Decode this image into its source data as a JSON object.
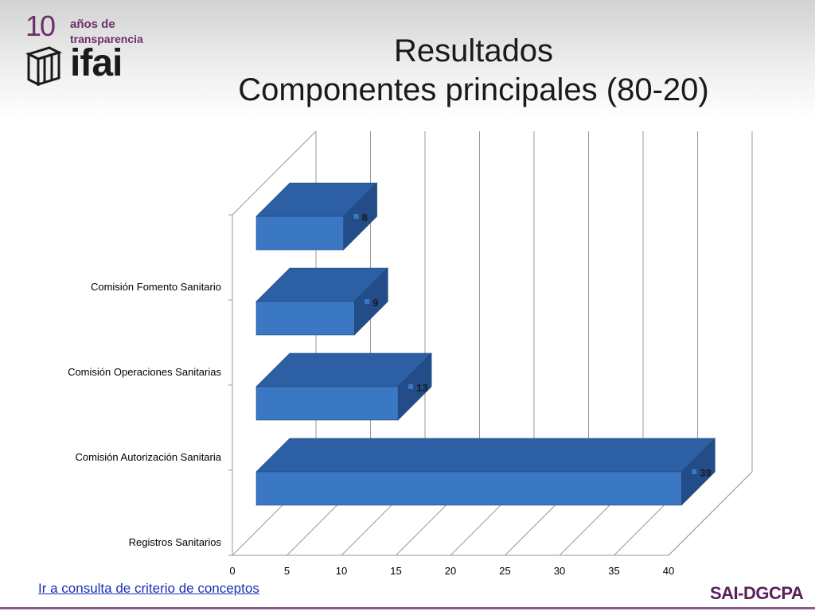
{
  "header": {
    "logo_years": "10",
    "logo_line1": "años de",
    "logo_line2": "transparencia",
    "logo_brand": "ifai",
    "title_line1": "Resultados",
    "title_line2": "Componentes principales (80-20)"
  },
  "chart_data": {
    "type": "bar",
    "orientation": "horizontal",
    "style": "3d",
    "categories": [
      "Comisión Fomento Sanitario",
      "Comisión Operaciones Sanitarias",
      "Comisión Autorización Sanitaria",
      "Registros Sanitarios"
    ],
    "values": [
      8,
      9,
      13,
      39
    ],
    "xlim": [
      0,
      40
    ],
    "xticks": [
      0,
      5,
      10,
      15,
      20,
      25,
      30,
      35,
      40
    ],
    "grid": true,
    "bar_color": "#3b78c4",
    "legend": "none"
  },
  "footer": {
    "link_text": "Ir a consulta de criterio de conceptos",
    "brand": "SAI-DGCPA"
  },
  "colors": {
    "bar_front": "#3b78c4",
    "bar_top": "#2c5fa3",
    "bar_side": "#234d88",
    "grid": "#9a9a9a",
    "brand": "#5a1f5a",
    "link": "#1a2fb8"
  }
}
